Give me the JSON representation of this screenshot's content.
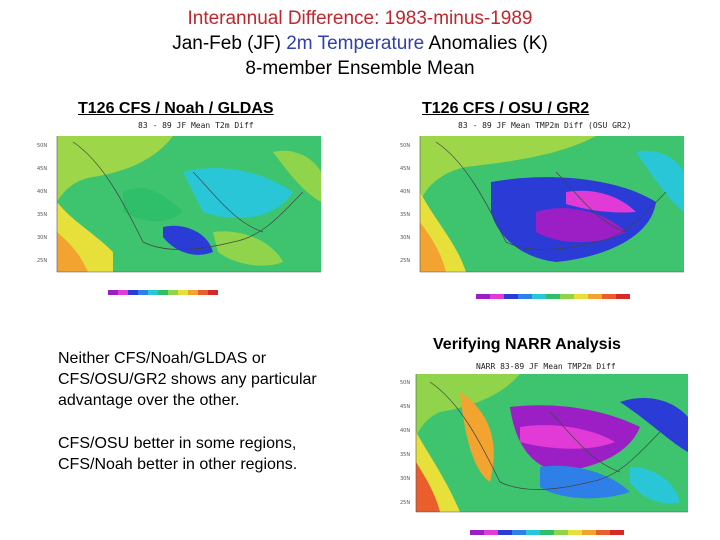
{
  "title": {
    "line1": "Interannual Difference: 1983-minus-1989",
    "line2_prefix": "Jan-Feb (JF) ",
    "line2_highlight": "2m Temperature",
    "line2_suffix": " Anomalies (K)",
    "line3": "8-member Ensemble Mean"
  },
  "panels": [
    {
      "heading": "T126 CFS / Noah / GLDAS",
      "caption": "83 - 89 JF Mean T2m Diff"
    },
    {
      "heading": "T126 CFS / OSU / GR2",
      "caption": "83 - 89 JF Mean TMP2m Diff (OSU GR2)"
    },
    {
      "heading": "Verifying NARR Analysis",
      "caption": "NARR 83-89 JF Mean TMP2m Diff"
    }
  ],
  "notes": {
    "p1": "Neither CFS/Noah/GLDAS or CFS/OSU/GR2 shows any particular advantage over the other.",
    "p2": "CFS/OSU better in some regions, CFS/Noah better in other regions."
  },
  "colors": {
    "title_red": "#c0262d",
    "title_blue": "#2f3fae",
    "colorbar": [
      "#9b1fc4",
      "#e23ad6",
      "#2b3bd6",
      "#2f7fe8",
      "#29c6d8",
      "#2fbf6a",
      "#8fd44a",
      "#e8e03a",
      "#f2a330",
      "#ea5d2c",
      "#d62a2a"
    ]
  }
}
